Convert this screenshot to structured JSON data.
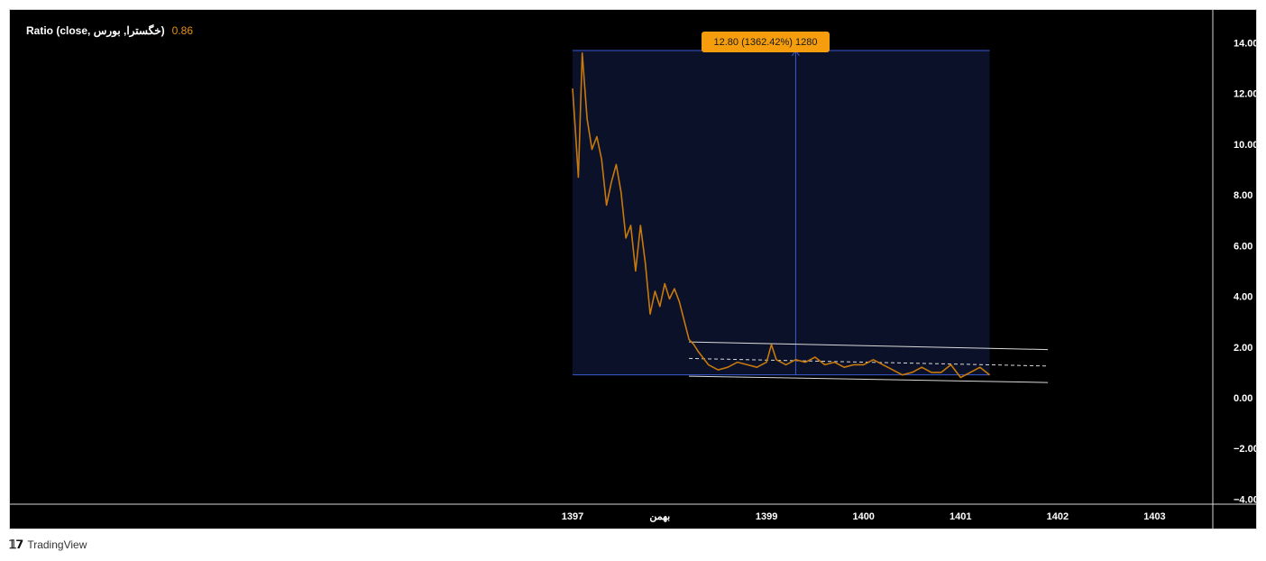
{
  "legend": {
    "label": "Ratio (close, خگسترا, بورس)",
    "value": "0.86",
    "value_color": "#e88f10"
  },
  "measure": {
    "label": "12.80 (1362.42%) 1280",
    "price_change": 12.8,
    "percent_change": 1362.42,
    "bars": 1280,
    "from_value": 0.9,
    "to_value": 13.7,
    "box_color": "#0a1128",
    "line_color": "#3b5bd6",
    "label_bg": "#f59d0c"
  },
  "brand": {
    "icon": "tradingview-logo-icon",
    "name": "TradingView"
  },
  "chart_data": {
    "type": "line",
    "series": [
      {
        "color": "#c8790c",
        "x": [
          1397.0,
          1397.03,
          1397.06,
          1397.1,
          1397.15,
          1397.2,
          1397.25,
          1397.3,
          1397.35,
          1397.4,
          1397.45,
          1397.5,
          1397.55,
          1397.6,
          1397.65,
          1397.7,
          1397.75,
          1397.8,
          1397.85,
          1397.9,
          1397.95,
          1398.0,
          1398.05,
          1398.1,
          1398.2,
          1398.25,
          1398.3,
          1398.4,
          1398.5,
          1398.6,
          1398.7,
          1398.8,
          1398.9,
          1399.0,
          1399.05,
          1399.1,
          1399.2,
          1399.3,
          1399.4,
          1399.5,
          1399.6,
          1399.7,
          1399.8,
          1399.9,
          1400.0,
          1400.1,
          1400.2,
          1400.3,
          1400.4,
          1400.5,
          1400.6,
          1400.7,
          1400.8,
          1400.9,
          1401.0,
          1401.1,
          1401.2,
          1401.3
        ],
        "values": [
          12.2,
          10.5,
          8.7,
          13.6,
          11.0,
          9.8,
          10.3,
          9.4,
          7.6,
          8.5,
          9.2,
          8.1,
          6.3,
          6.8,
          5.0,
          6.8,
          5.3,
          3.3,
          4.2,
          3.6,
          4.5,
          3.9,
          4.3,
          3.8,
          2.3,
          2.1,
          1.8,
          1.3,
          1.1,
          1.2,
          1.4,
          1.3,
          1.2,
          1.4,
          2.1,
          1.5,
          1.3,
          1.5,
          1.4,
          1.6,
          1.3,
          1.4,
          1.2,
          1.3,
          1.3,
          1.5,
          1.3,
          1.1,
          0.9,
          1.0,
          1.2,
          1.0,
          1.0,
          1.3,
          0.8,
          1.0,
          1.2,
          0.9
        ]
      }
    ],
    "x_ticks": [
      {
        "x": 1397.0,
        "label": "1397"
      },
      {
        "x": 1397.9,
        "label": "بهمن"
      },
      {
        "x": 1399.0,
        "label": "1399"
      },
      {
        "x": 1400.0,
        "label": "1400"
      },
      {
        "x": 1401.0,
        "label": "1401"
      },
      {
        "x": 1402.0,
        "label": "1402"
      },
      {
        "x": 1403.0,
        "label": "1403"
      }
    ],
    "y_ticks": [
      "14.00",
      "12.00",
      "10.00",
      "8.00",
      "6.00",
      "4.00",
      "2.00",
      "0.00",
      "−2.00",
      "−4.00"
    ],
    "ylim": [
      -4.2,
      15.3
    ],
    "xlim": [
      1391.2,
      1403.6
    ],
    "grid": false,
    "channel": {
      "x_start": 1398.2,
      "x_end": 1401.9,
      "upper": [
        2.2,
        1.9
      ],
      "mid": [
        1.55,
        1.25
      ],
      "lower": [
        0.85,
        0.6
      ],
      "color": "#d9d9d9"
    },
    "measure_x": [
      1397.0,
      1399.3,
      1401.3
    ]
  }
}
